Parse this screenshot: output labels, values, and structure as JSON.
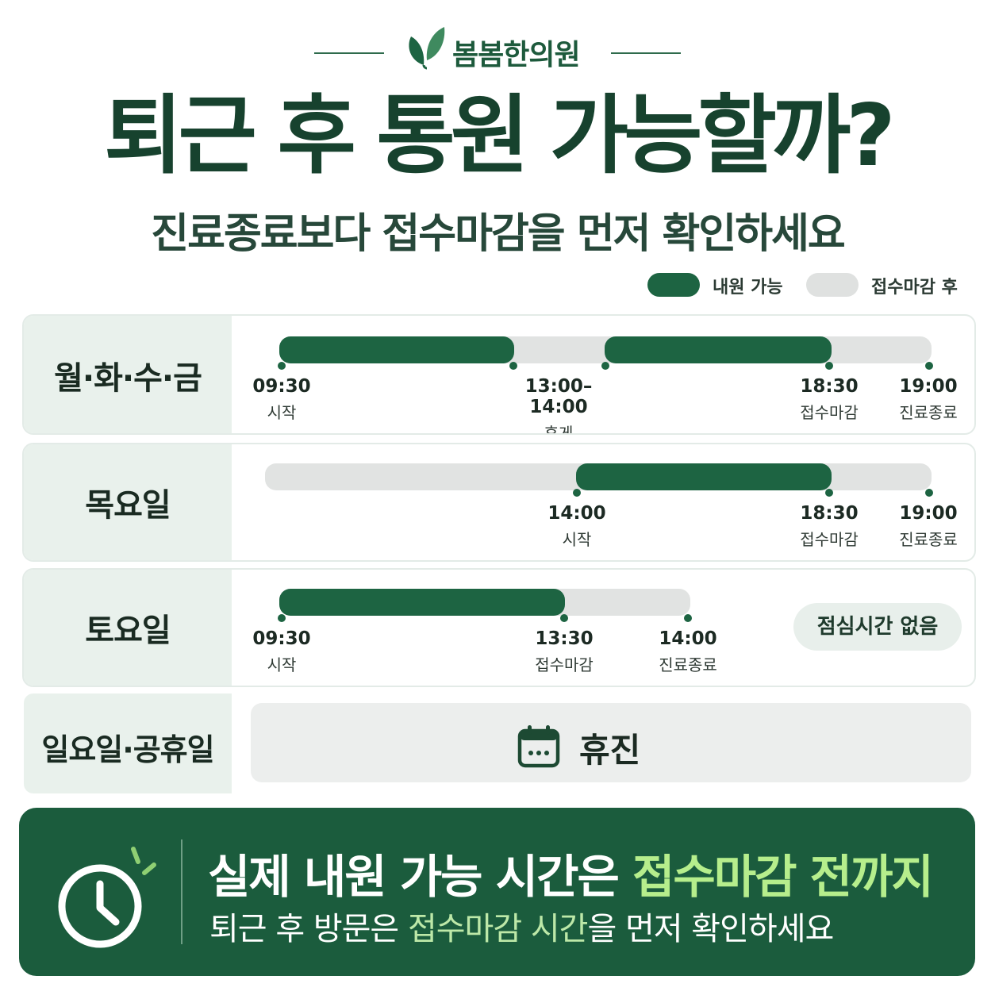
{
  "brand": {
    "name": "봄봄한의원",
    "icon": "leaf-icon"
  },
  "headline": "퇴근 후 통원 가능할까?",
  "subhead": "진료종료보다 접수마감을 먼저 확인하세요",
  "legend": {
    "available": "내원 가능",
    "after_deadline": "접수마감 후"
  },
  "colors": {
    "primary": "#1d6442",
    "gray": "#e1e3e2",
    "highlight": "#b6ee8c",
    "banner": "#1b5c3d"
  },
  "schedule": {
    "weekdays": {
      "label": "월·화·수·금",
      "ticks": [
        {
          "time": "09:30",
          "caption": "시작"
        },
        {
          "time": "13:00–14:00",
          "caption": "휴게"
        },
        {
          "time": "18:30",
          "caption": "접수마감"
        },
        {
          "time": "19:00",
          "caption": "진료종료"
        }
      ]
    },
    "thursday": {
      "label": "목요일",
      "ticks": [
        {
          "time": "14:00",
          "caption": "시작"
        },
        {
          "time": "18:30",
          "caption": "접수마감"
        },
        {
          "time": "19:00",
          "caption": "진료종료"
        }
      ]
    },
    "saturday": {
      "label": "토요일",
      "ticks": [
        {
          "time": "09:30",
          "caption": "시작"
        },
        {
          "time": "13:30",
          "caption": "접수마감"
        },
        {
          "time": "14:00",
          "caption": "진료종료"
        }
      ],
      "note": "점심시간 없음"
    },
    "sunday": {
      "label": "일요일·공휴일",
      "status": "휴진",
      "icon": "calendar-icon"
    }
  },
  "banner": {
    "icon": "clock-icon",
    "title_part1": "실제 내원 가능 시간은 ",
    "title_highlight": "접수마감 전까지",
    "sub_part1": "퇴근 후 방문은 ",
    "sub_highlight": "접수마감 시간",
    "sub_part2": "을 먼저 확인하세요"
  }
}
